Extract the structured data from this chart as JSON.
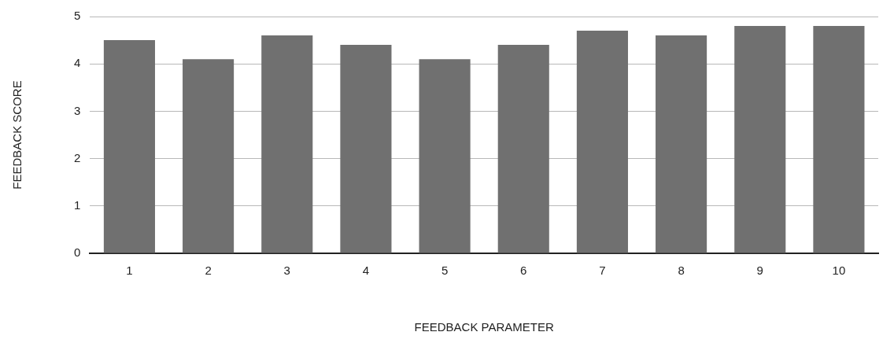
{
  "chart_data": {
    "type": "bar",
    "xlabel": "FEEDBACK PARAMETER",
    "ylabel": "FEEDBACK SCORE",
    "categories": [
      "1",
      "2",
      "3",
      "4",
      "5",
      "6",
      "7",
      "8",
      "9",
      "10"
    ],
    "values": [
      4.5,
      4.1,
      4.6,
      4.4,
      4.1,
      4.4,
      4.7,
      4.6,
      4.8,
      4.8
    ],
    "color": "#707070",
    "ylim": [
      0,
      5
    ],
    "yticks": [
      0,
      1,
      2,
      3,
      4,
      5
    ],
    "grid": "y",
    "legend": false
  }
}
